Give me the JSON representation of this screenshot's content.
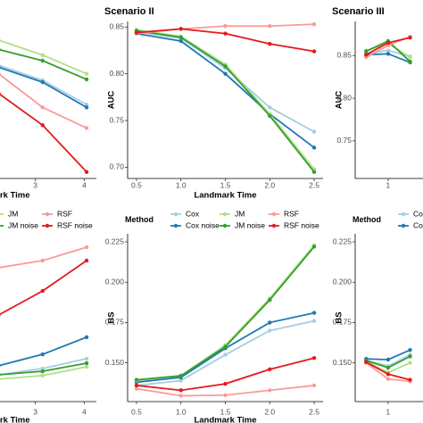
{
  "chart_data": [
    {
      "type": "line",
      "xlabel": "Landmark Time",
      "x": [
        2.25,
        3.15,
        4.05
      ],
      "xlim": [
        0.25,
        4.25
      ],
      "xticks": [
        3,
        4
      ],
      "ylim": [
        0.688,
        0.856
      ],
      "legend": "bottom",
      "series": [
        {
          "name": "Cox",
          "color": "#a6cee3",
          "values": [
            0.809,
            0.793,
            0.767
          ]
        },
        {
          "name": "Cox noise",
          "color": "#1f78b4",
          "values": [
            0.807,
            0.791,
            0.764
          ]
        },
        {
          "name": "JM",
          "color": "#b2df8a",
          "values": [
            0.836,
            0.82,
            0.8
          ]
        },
        {
          "name": "JM noise",
          "color": "#33a02c",
          "values": [
            0.826,
            0.814,
            0.794
          ]
        },
        {
          "name": "RSF",
          "color": "#fb9a99",
          "values": [
            0.8,
            0.764,
            0.742
          ]
        },
        {
          "name": "RSF noise",
          "color": "#e31a1c",
          "values": [
            0.779,
            0.745,
            0.695
          ]
        }
      ]
    },
    {
      "type": "line",
      "title": "Scenario II",
      "xlabel": "Landmark Time",
      "ylabel": "AUC",
      "x": [
        0.5,
        1,
        1.5,
        2,
        2.5
      ],
      "xlim": [
        0.4,
        2.6
      ],
      "xticks": [
        0.5,
        {
          "value": 1,
          "label": "1.0"
        },
        1.5,
        {
          "value": 2,
          "label": "2.0"
        },
        2.5
      ],
      "ylim": [
        0.688,
        0.856
      ],
      "yticks": [
        {
          "value": 0.7,
          "label": "0.70"
        },
        0.75,
        {
          "value": 0.8,
          "label": "0.80"
        },
        0.85
      ],
      "legend": "bottom",
      "legend_title": "Method",
      "series": [
        {
          "name": "Cox",
          "color": "#a6cee3",
          "values": [
            0.845,
            0.838,
            0.806,
            0.764,
            0.738
          ]
        },
        {
          "name": "Cox noise",
          "color": "#1f78b4",
          "values": [
            0.843,
            0.835,
            0.8,
            0.757,
            0.721
          ]
        },
        {
          "name": "JM",
          "color": "#b2df8a",
          "values": [
            0.847,
            0.84,
            0.81,
            0.757,
            0.698
          ]
        },
        {
          "name": "JM noise",
          "color": "#33a02c",
          "values": [
            0.846,
            0.839,
            0.808,
            0.755,
            0.695
          ]
        },
        {
          "name": "RSF",
          "color": "#fb9a99",
          "values": [
            0.843,
            0.848,
            0.851,
            0.851,
            0.853
          ]
        },
        {
          "name": "RSF noise",
          "color": "#e31a1c",
          "values": [
            0.844,
            0.848,
            0.843,
            0.832,
            0.824
          ]
        }
      ]
    },
    {
      "type": "line",
      "title": "Scenario III",
      "ylabel": "AUC",
      "x": [
        0.5,
        1,
        1.5
      ],
      "xlim": [
        0.25,
        4.7
      ],
      "xticks": [
        1
      ],
      "ylim": [
        0.706,
        0.89
      ],
      "yticks": [
        0.75,
        {
          "value": 0.8,
          "label": "0.80"
        },
        0.85
      ],
      "legend": "bottom",
      "legend_title": "Method",
      "series": [
        {
          "name": "Cox",
          "color": "#a6cee3",
          "values": [
            0.852,
            0.856,
            0.849
          ]
        },
        {
          "name": "Cox noise",
          "color": "#1f78b4",
          "values": [
            0.851,
            0.852,
            0.842
          ]
        },
        {
          "name": "JM",
          "color": "#b2df8a",
          "values": [
            0.856,
            0.864,
            0.848
          ]
        },
        {
          "name": "JM noise",
          "color": "#33a02c",
          "values": [
            0.855,
            0.867,
            0.843
          ]
        },
        {
          "name": "RSF",
          "color": "#fb9a99",
          "values": [
            0.848,
            0.862,
            0.872
          ]
        },
        {
          "name": "RSF noise",
          "color": "#e31a1c",
          "values": [
            0.851,
            0.865,
            0.871
          ]
        }
      ]
    },
    {
      "type": "line",
      "xlabel": "Landmark Time",
      "x": [
        2.25,
        3.15,
        4.05
      ],
      "xlim": [
        0.25,
        4.25
      ],
      "xticks": [
        3,
        4
      ],
      "ylim": [
        0.126,
        0.23
      ],
      "series": [
        {
          "name": "Cox",
          "color": "#a6cee3",
          "values": [
            0.1426,
            0.1465,
            0.1526
          ]
        },
        {
          "name": "Cox noise",
          "color": "#1f78b4",
          "values": [
            0.1482,
            0.1553,
            0.1659
          ]
        },
        {
          "name": "JM",
          "color": "#b2df8a",
          "values": [
            0.1399,
            0.1421,
            0.1476
          ]
        },
        {
          "name": "JM noise",
          "color": "#33a02c",
          "values": [
            0.1426,
            0.1448,
            0.1498
          ]
        },
        {
          "name": "RSF",
          "color": "#fb9a99",
          "values": [
            0.209,
            0.2134,
            0.2217
          ]
        },
        {
          "name": "RSF noise",
          "color": "#e31a1c",
          "values": [
            0.1797,
            0.1946,
            0.2134
          ]
        }
      ]
    },
    {
      "type": "line",
      "xlabel": "Landmark Time",
      "ylabel": "BS",
      "x": [
        0.5,
        1,
        1.5,
        2,
        2.5
      ],
      "xlim": [
        0.4,
        2.6
      ],
      "xticks": [
        0.5,
        {
          "value": 1,
          "label": "1.0"
        },
        1.5,
        {
          "value": 2,
          "label": "2.0"
        },
        2.5
      ],
      "ylim": [
        0.126,
        0.23
      ],
      "yticks": [
        {
          "value": 0.15,
          "label": "0.150"
        },
        0.175,
        {
          "value": 0.2,
          "label": "0.200"
        },
        0.225
      ],
      "series": [
        {
          "name": "Cox",
          "color": "#a6cee3",
          "values": [
            0.136,
            0.139,
            0.155,
            0.17,
            0.176
          ]
        },
        {
          "name": "Cox noise",
          "color": "#1f78b4",
          "values": [
            0.138,
            0.141,
            0.159,
            0.175,
            0.181
          ]
        },
        {
          "name": "JM",
          "color": "#b2df8a",
          "values": [
            0.139,
            0.142,
            0.161,
            0.19,
            0.223
          ]
        },
        {
          "name": "JM noise",
          "color": "#33a02c",
          "values": [
            0.1395,
            0.142,
            0.16,
            0.189,
            0.222
          ]
        },
        {
          "name": "RSF",
          "color": "#fb9a99",
          "values": [
            0.134,
            0.1296,
            0.13,
            0.133,
            0.136
          ]
        },
        {
          "name": "RSF noise",
          "color": "#e31a1c",
          "values": [
            0.136,
            0.133,
            0.137,
            0.146,
            0.153
          ]
        }
      ]
    },
    {
      "type": "line",
      "ylabel": "BS",
      "x": [
        0.5,
        1,
        1.5
      ],
      "xlim": [
        0.25,
        4.7
      ],
      "xticks": [
        1
      ],
      "ylim": [
        0.126,
        0.23
      ],
      "yticks": [
        {
          "value": 0.15,
          "label": "0.150"
        },
        0.175,
        {
          "value": 0.2,
          "label": "0.200"
        },
        0.225
      ],
      "series": [
        {
          "name": "Cox",
          "color": "#a6cee3",
          "values": [
            0.1515,
            0.148,
            0.155
          ]
        },
        {
          "name": "Cox noise",
          "color": "#1f78b4",
          "values": [
            0.1525,
            0.152,
            0.158
          ]
        },
        {
          "name": "JM",
          "color": "#b2df8a",
          "values": [
            0.151,
            0.144,
            0.15
          ]
        },
        {
          "name": "JM noise",
          "color": "#33a02c",
          "values": [
            0.1515,
            0.147,
            0.154
          ]
        },
        {
          "name": "RSF",
          "color": "#fb9a99",
          "values": [
            0.15,
            0.14,
            0.1385
          ]
        },
        {
          "name": "RSF noise",
          "color": "#e31a1c",
          "values": [
            0.1505,
            0.143,
            0.1395
          ]
        }
      ]
    }
  ]
}
